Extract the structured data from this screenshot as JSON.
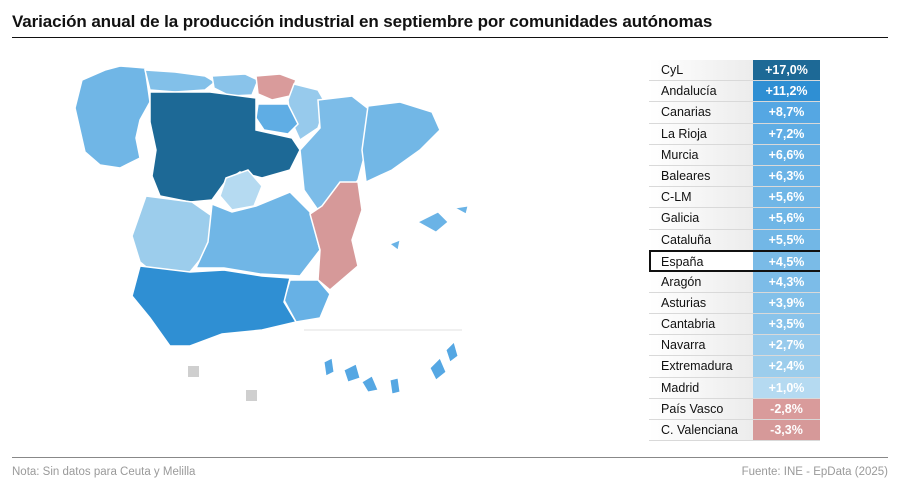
{
  "title": "Variación anual de la producción industrial en septiembre por comunidades autónomas",
  "footer": {
    "note": "Nota: Sin datos para Ceuta y Melilla",
    "source": "Fuente: INE - EpData (2025)"
  },
  "colors": {
    "very_high": "#1d6996",
    "high": "#2f8fd3",
    "medium": "#6fb6e6",
    "low": "#a9d3f0",
    "negative": "#d99b9b",
    "no_data": "#cfcfcf"
  },
  "chart_data": {
    "type": "table",
    "title": "Variación anual de la producción industrial en septiembre por comunidades autónomas",
    "highlight": "España",
    "rows": [
      {
        "name": "CyL",
        "label": "+17,0%",
        "value": 17.0,
        "color": "#1d6996"
      },
      {
        "name": "Andalucía",
        "label": "+11,2%",
        "value": 11.2,
        "color": "#2f8fd3"
      },
      {
        "name": "Canarias",
        "label": "+8,7%",
        "value": 8.7,
        "color": "#55a7e3"
      },
      {
        "name": "La Rioja",
        "label": "+7,2%",
        "value": 7.2,
        "color": "#5fade4"
      },
      {
        "name": "Murcia",
        "label": "+6,6%",
        "value": 6.6,
        "color": "#67b1e5"
      },
      {
        "name": "Baleares",
        "label": "+6,3%",
        "value": 6.3,
        "color": "#6ab3e6"
      },
      {
        "name": "C-LM",
        "label": "+5,6%",
        "value": 5.6,
        "color": "#70b6e6"
      },
      {
        "name": "Galicia",
        "label": "+5,6%",
        "value": 5.6,
        "color": "#70b6e6"
      },
      {
        "name": "Cataluña",
        "label": "+5,5%",
        "value": 5.5,
        "color": "#72b7e6"
      },
      {
        "name": "España",
        "label": "+4,5%",
        "value": 4.5,
        "color": "#7abbe7"
      },
      {
        "name": "Aragón",
        "label": "+4,3%",
        "value": 4.3,
        "color": "#7cbce8"
      },
      {
        "name": "Asturias",
        "label": "+3,9%",
        "value": 3.9,
        "color": "#82c0e9"
      },
      {
        "name": "Cantabria",
        "label": "+3,5%",
        "value": 3.5,
        "color": "#89c3ea"
      },
      {
        "name": "Navarra",
        "label": "+2,7%",
        "value": 2.7,
        "color": "#97caec"
      },
      {
        "name": "Extremadura",
        "label": "+2,4%",
        "value": 2.4,
        "color": "#9ccdec"
      },
      {
        "name": "Madrid",
        "label": "+1,0%",
        "value": 1.0,
        "color": "#b5daf1"
      },
      {
        "name": "País Vasco",
        "label": "-2,8%",
        "value": -2.8,
        "color": "#d99b9b"
      },
      {
        "name": "C. Valenciana",
        "label": "-3,3%",
        "value": -3.3,
        "color": "#d69999"
      }
    ]
  }
}
